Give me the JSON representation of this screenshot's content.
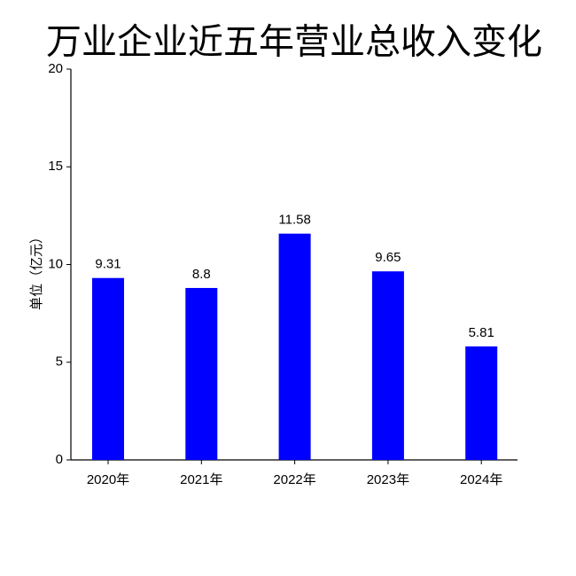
{
  "chart_data": {
    "type": "bar",
    "title": "万业企业近五年营业总收入变化",
    "y_label": "单位（亿元）",
    "categories": [
      "2020年",
      "2021年",
      "2022年",
      "2023年",
      "2024年"
    ],
    "values": [
      9.31,
      8.8,
      11.58,
      9.65,
      5.81
    ],
    "color": "#0000ff",
    "ylim": [
      0,
      20
    ],
    "yticks": [
      0,
      5,
      10,
      15,
      20
    ],
    "grid": false
  }
}
